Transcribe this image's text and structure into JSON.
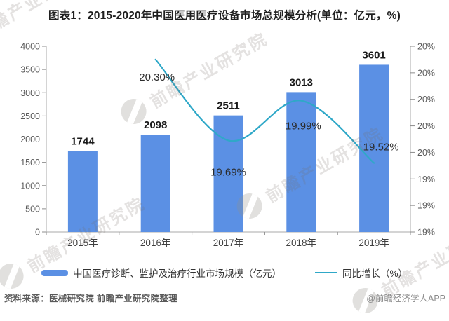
{
  "title": "图表1：2015-2020年中国医用医疗设备市场总规模分析(单位：亿元，%)",
  "watermark": {
    "brand": "前瞻产业研究院"
  },
  "footer": {
    "source": "资料来源：医械研究院 前瞻产业研究院整理",
    "credit": "@前瞻经济学人APP"
  },
  "chart_data": {
    "type": "combo",
    "title": "2015-2020年中国医用医疗设备市场总规模分析",
    "categories": [
      "2015年",
      "2016年",
      "2017年",
      "2018年",
      "2019年"
    ],
    "series": [
      {
        "name": "中国医疗诊断、监护及治疗行业市场规模（亿元）",
        "type": "bar",
        "axis": "left",
        "color": "#5B90E4",
        "values": [
          1744,
          2098,
          2511,
          3013,
          3601
        ],
        "labels": [
          "1744",
          "2098",
          "2511",
          "3013",
          "3601"
        ]
      },
      {
        "name": "同比增长（%）",
        "type": "line",
        "axis": "right",
        "color": "#2FA8C8",
        "smooth": true,
        "values": [
          null,
          20.3,
          19.69,
          19.99,
          19.52
        ],
        "labels": [
          null,
          "20.30%",
          "19.69%",
          "19.99%",
          "19.52%"
        ],
        "label_offsets": [
          null,
          [
            2,
            30
          ],
          [
            0,
            50
          ],
          [
            3,
            41
          ],
          [
            10,
            -18
          ]
        ]
      }
    ],
    "left_axis": {
      "min": 0,
      "max": 4000,
      "step": 500,
      "tick_labels": [
        "4000",
        "3500",
        "3000",
        "2500",
        "2000",
        "1500",
        "1000",
        "500",
        "0"
      ]
    },
    "right_axis": {
      "min": 19.0,
      "max": 20.4,
      "step": 0.2,
      "tick_labels": [
        "20%",
        "20%",
        "20%",
        "20%",
        "20%",
        "19%",
        "19%",
        "19%"
      ]
    },
    "grid": false,
    "legend_position": "bottom"
  }
}
